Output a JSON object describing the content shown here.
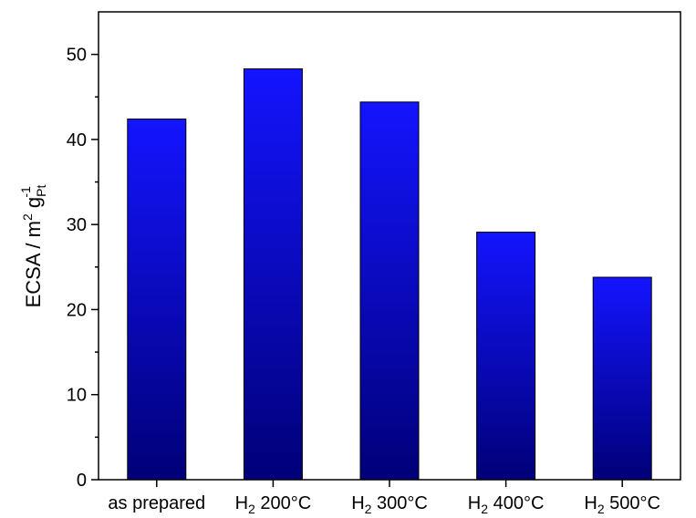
{
  "chart_data": {
    "type": "bar",
    "categories": [
      {
        "main": "as prepared",
        "sub": "",
        "rest": ""
      },
      {
        "main": "H",
        "sub": "2",
        "rest": " 200°C"
      },
      {
        "main": "H",
        "sub": "2",
        "rest": " 300°C"
      },
      {
        "main": "H",
        "sub": "2",
        "rest": " 400°C"
      },
      {
        "main": "H",
        "sub": "2",
        "rest": " 500°C"
      }
    ],
    "values": [
      42.4,
      48.3,
      44.4,
      29.1,
      23.8
    ],
    "ylabel": {
      "main": "ECSA / m",
      "sup1": "2",
      "mid": " g",
      "sub": "Pt",
      "sup2": "-1"
    },
    "ylim": [
      0,
      55
    ],
    "yticks": [
      "0",
      "10",
      "20",
      "30",
      "40",
      "50"
    ],
    "ytick_values": [
      0,
      10,
      20,
      30,
      40,
      50
    ],
    "grid": false,
    "colors": {
      "bar_top": "#1414ff",
      "bar_bottom": "#000078",
      "bar_edge": "#000000",
      "axis": "#000000"
    }
  }
}
